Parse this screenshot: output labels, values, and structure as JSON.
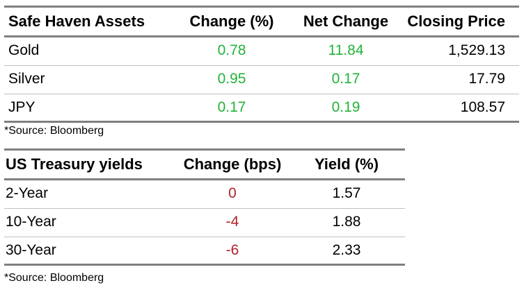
{
  "safe_haven": {
    "headers": [
      "Safe Haven Assets",
      "Change (%)",
      "Net Change",
      "Closing Price"
    ],
    "rows": [
      {
        "asset": "Gold",
        "change_pct": "0.78",
        "net_change": "11.84",
        "closing_price": "1,529.13"
      },
      {
        "asset": "Silver",
        "change_pct": "0.95",
        "net_change": "0.17",
        "closing_price": "17.79"
      },
      {
        "asset": "JPY",
        "change_pct": "0.17",
        "net_change": "0.19",
        "closing_price": "108.57"
      }
    ],
    "source": "*Source: Bloomberg"
  },
  "treasury": {
    "headers": [
      "US Treasury yields",
      "Change (bps)",
      "Yield (%)"
    ],
    "rows": [
      {
        "tenor": "2-Year",
        "change_bps": "0",
        "yield_pct": "1.57"
      },
      {
        "tenor": "10-Year",
        "change_bps": "-4",
        "yield_pct": "1.88"
      },
      {
        "tenor": "30-Year",
        "change_bps": "-6",
        "yield_pct": "2.33"
      }
    ],
    "source": "*Source: Bloomberg"
  },
  "colors": {
    "positive": "#22b33a",
    "negative": "#b1242a",
    "rule_thick": "#7f7f7f",
    "rule_thin": "#bfbfbf"
  }
}
